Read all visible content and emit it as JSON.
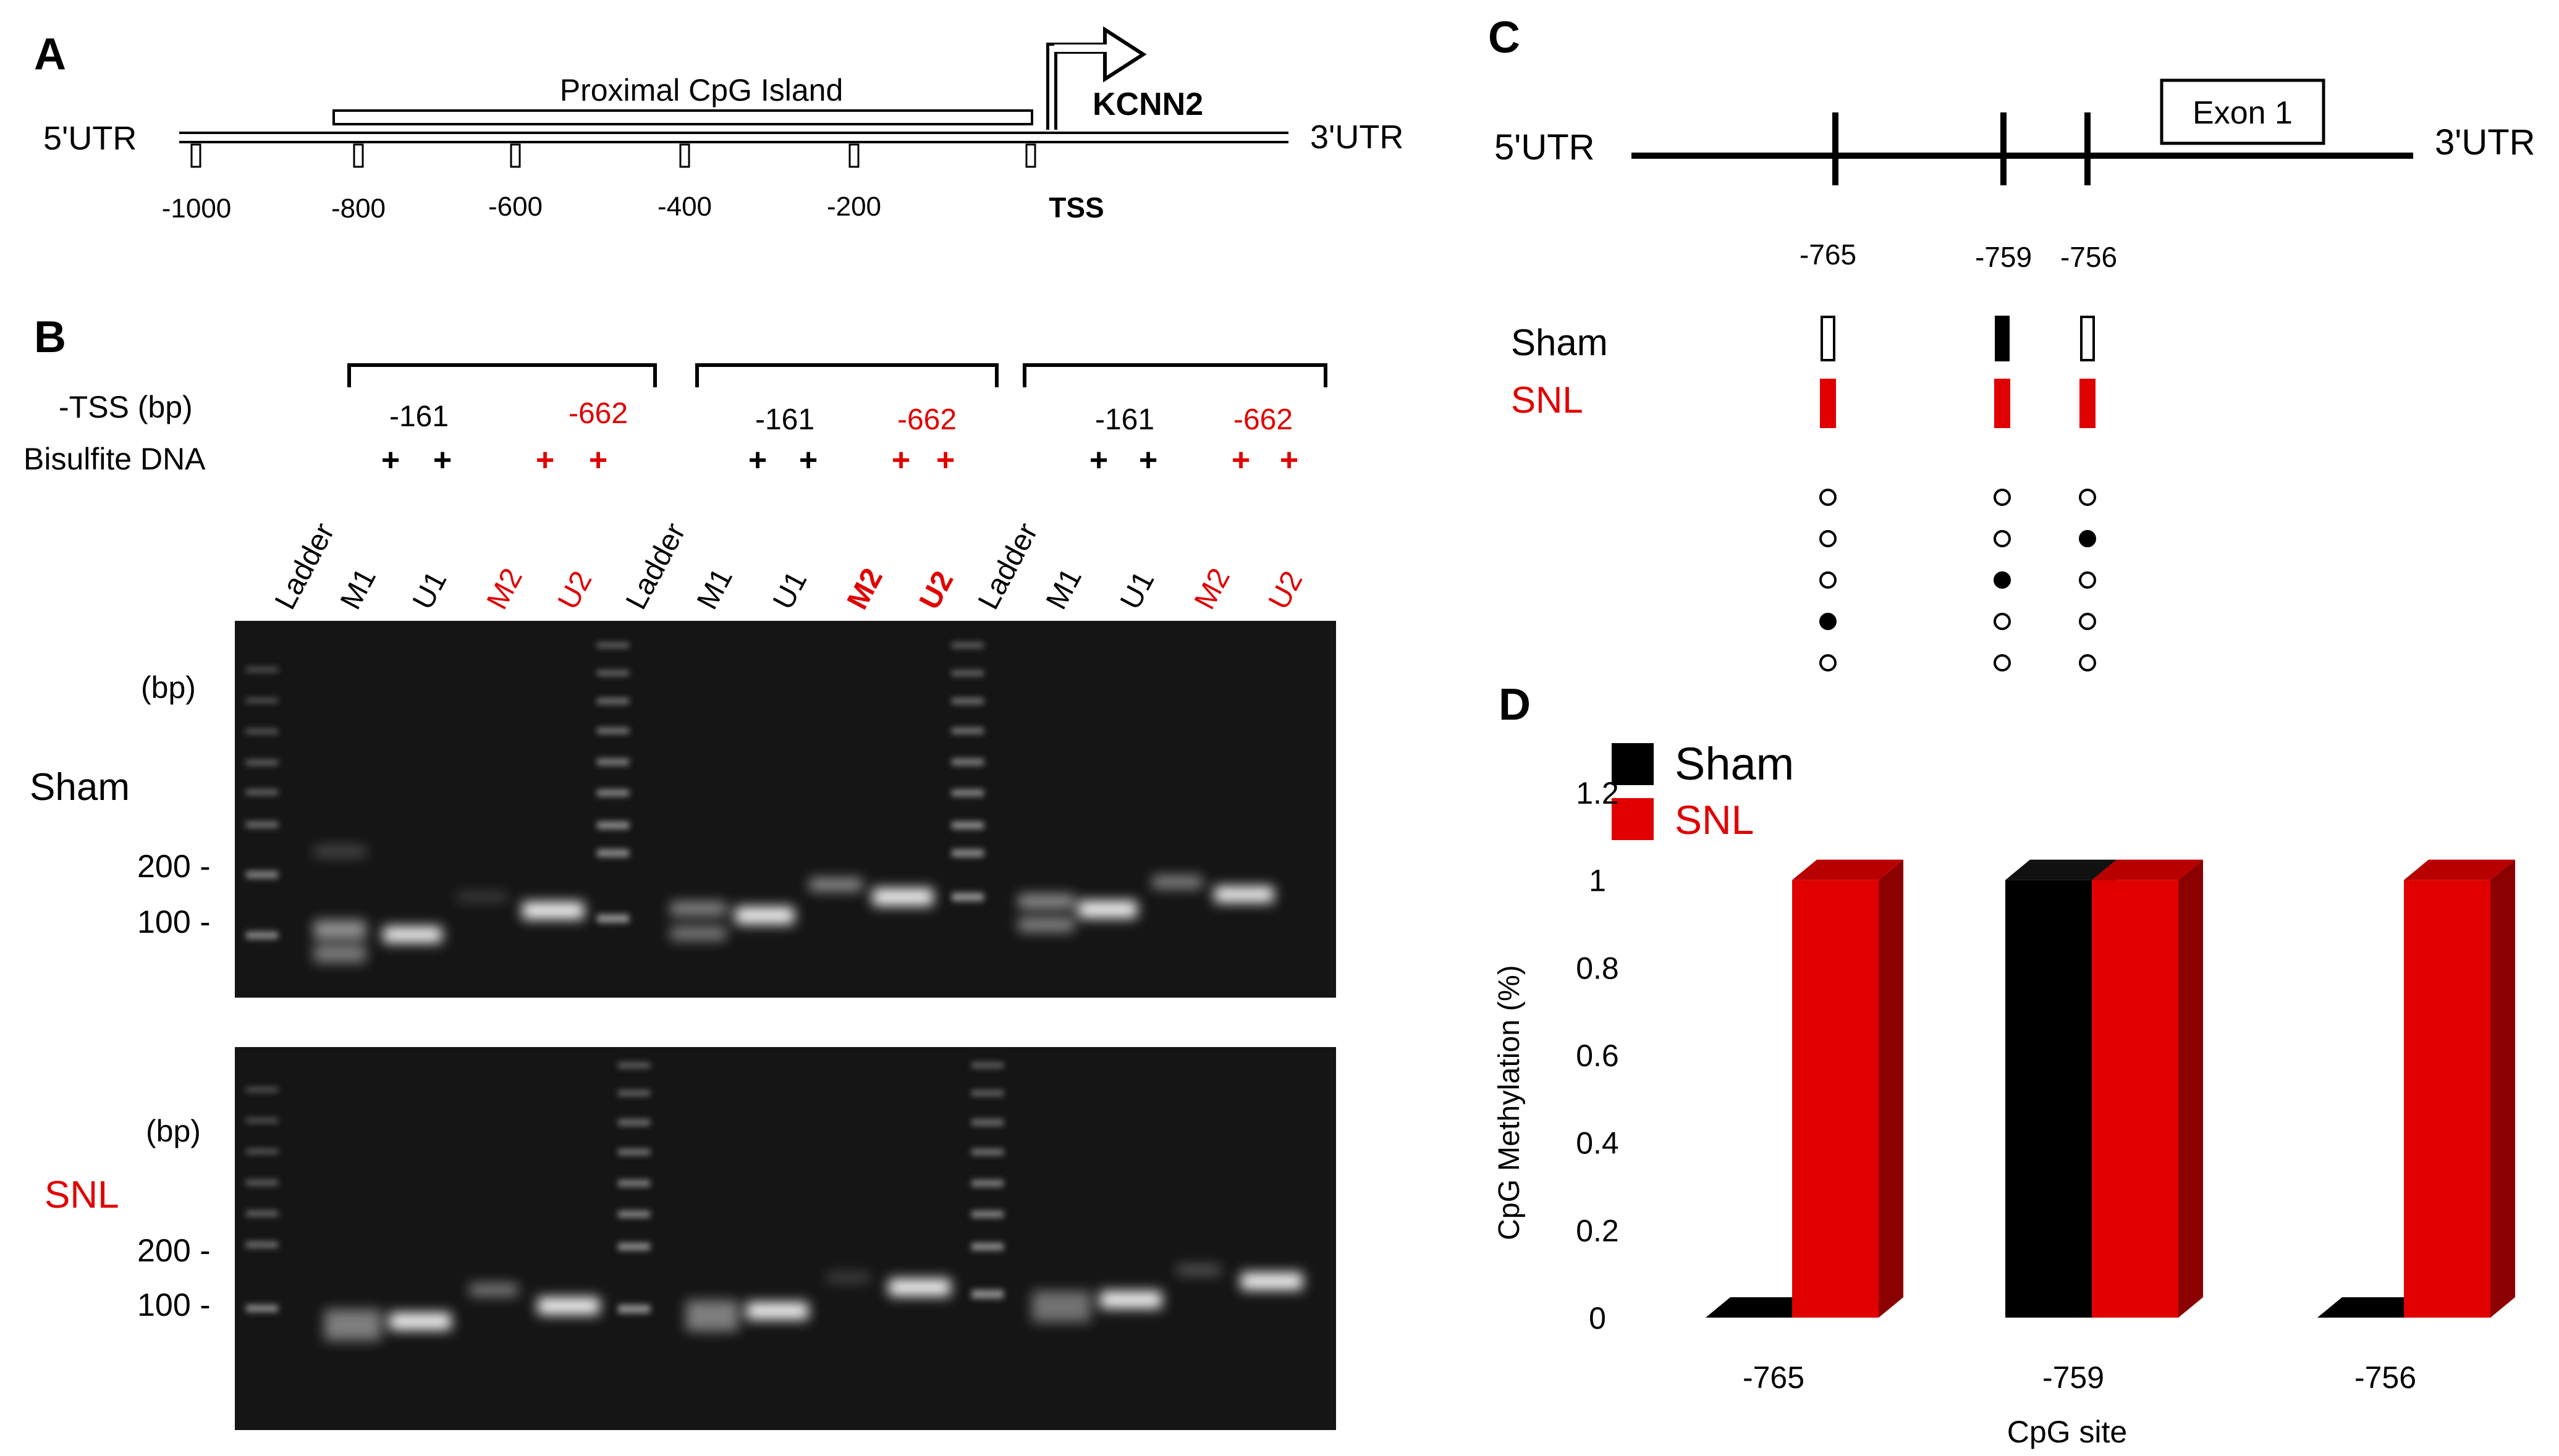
{
  "colors": {
    "sham": "#000000",
    "snl": "#e00000",
    "snl_dark": "#8b0000",
    "snl_top": "#b80000",
    "gel": "#1a1a1a"
  },
  "panel_a": {
    "label": "A",
    "utr5": "5'UTR",
    "utr3": "3'UTR",
    "island": "Proximal CpG Island",
    "gene": "KCNN2",
    "tss": "TSS",
    "ticks": [
      "-1000",
      "-800",
      "-600",
      "-400",
      "-200"
    ]
  },
  "panel_b": {
    "label": "B",
    "tss_label": "-TSS (bp)",
    "bisulfite_label": "Bisulfite DNA",
    "groups": [
      {
        "left": "-161",
        "right": "-662"
      },
      {
        "left": "-161",
        "right": "-662"
      },
      {
        "left": "-161",
        "right": "-662"
      }
    ],
    "plus": "+",
    "lanes": [
      "Ladder",
      "M1",
      "U1",
      "M2",
      "U2",
      "Ladder",
      "M1",
      "U1",
      "M2",
      "U2",
      "Ladder",
      "M1",
      "U1",
      "M2",
      "U2"
    ],
    "gels": [
      {
        "condition": "Sham",
        "bp": "(bp)",
        "m200": "200 -",
        "m100": "100 -"
      },
      {
        "condition": "SNL",
        "bp": "(bp)",
        "m200": "200 -",
        "m100": "100 -"
      }
    ]
  },
  "panel_c": {
    "label": "C",
    "utr5": "5'UTR",
    "utr3": "3'UTR",
    "exon": "Exon 1",
    "sites": [
      "-765",
      "-759",
      "-756"
    ],
    "sham": "Sham",
    "snl": "SNL",
    "sham_methylated": [
      false,
      true,
      false
    ],
    "snl_methylated": [
      true,
      true,
      true
    ],
    "clone_dots": [
      [
        false,
        false,
        false,
        true,
        false
      ],
      [
        false,
        false,
        true,
        false,
        false
      ],
      [
        false,
        true,
        false,
        false,
        false
      ]
    ]
  },
  "panel_d": {
    "label": "D",
    "legend": [
      "Sham",
      "SNL"
    ]
  },
  "chart_data": {
    "type": "bar",
    "title": "",
    "xlabel": "CpG site",
    "ylabel": "CpG Methylation (%)",
    "categories": [
      "-765",
      "-759",
      "-756"
    ],
    "series": [
      {
        "name": "Sham",
        "values": [
          0,
          1,
          0
        ]
      },
      {
        "name": "SNL",
        "values": [
          1,
          1,
          1
        ]
      }
    ],
    "ylim": [
      0,
      1.2
    ],
    "yticks": [
      "0",
      "0.2",
      "0.4",
      "0.6",
      "0.8",
      "1",
      "1.2"
    ],
    "grid": false,
    "legend_position": "top-left",
    "style": "3d"
  }
}
